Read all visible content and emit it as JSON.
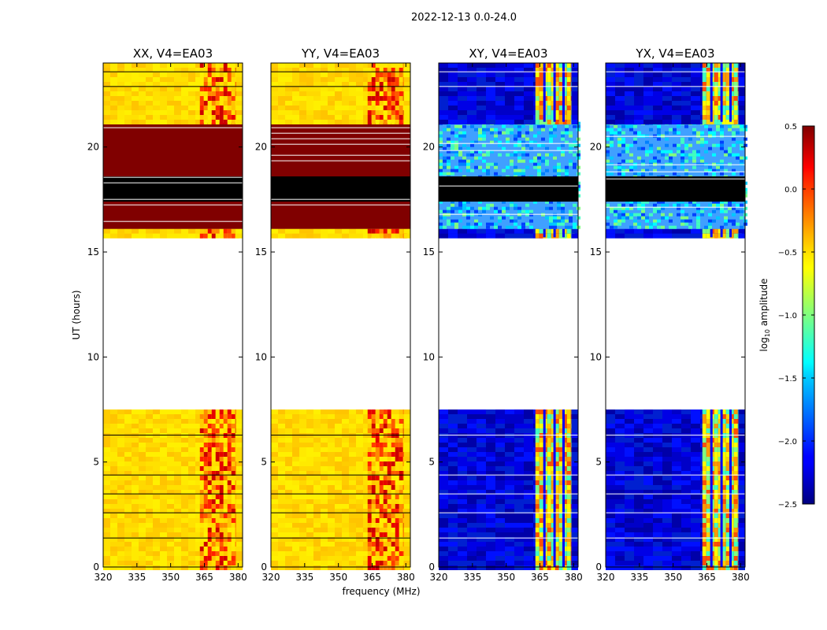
{
  "chart_data": {
    "type": "heatmap",
    "title": "2022-12-13 0.0-24.0",
    "xlabel": "frequency (MHz)",
    "ylabel": "UT (hours)",
    "xlim": [
      320,
      382
    ],
    "ylim": [
      0,
      24
    ],
    "x_ticks": [
      320,
      335,
      350,
      365,
      380
    ],
    "y_ticks": [
      0,
      5,
      10,
      15,
      20
    ],
    "panels": [
      {
        "label": "XX, V4=EA03",
        "kind": "parallel"
      },
      {
        "label": "YY, V4=EA03",
        "kind": "parallel"
      },
      {
        "label": "XY, V4=EA03",
        "kind": "cross"
      },
      {
        "label": "YX, V4=EA03",
        "kind": "cross"
      }
    ],
    "colorbar": {
      "label_main": "log",
      "label_sub": "10",
      "label_tail": " amplitude",
      "range": [
        -2.5,
        0.5
      ],
      "ticks": [
        0.5,
        0.0,
        -0.5,
        -1.0,
        -1.5,
        -2.0,
        -2.5
      ],
      "tick_labels": [
        "0.5",
        "0.0",
        "−0.5",
        "−1.0",
        "−1.5",
        "−2.0",
        "−2.5"
      ],
      "colormap": "jet"
    },
    "time_segments": [
      {
        "from": 0.0,
        "to": 7.5,
        "state": "data"
      },
      {
        "from": 7.5,
        "to": 15.7,
        "state": "no-data"
      },
      {
        "from": 15.7,
        "to": 16.1,
        "state": "data"
      },
      {
        "from": 16.1,
        "to": 21.2,
        "state": "saturated"
      },
      {
        "from": 21.2,
        "to": 24.0,
        "state": "data"
      }
    ],
    "rfi_band_mhz": [
      363,
      379
    ]
  }
}
